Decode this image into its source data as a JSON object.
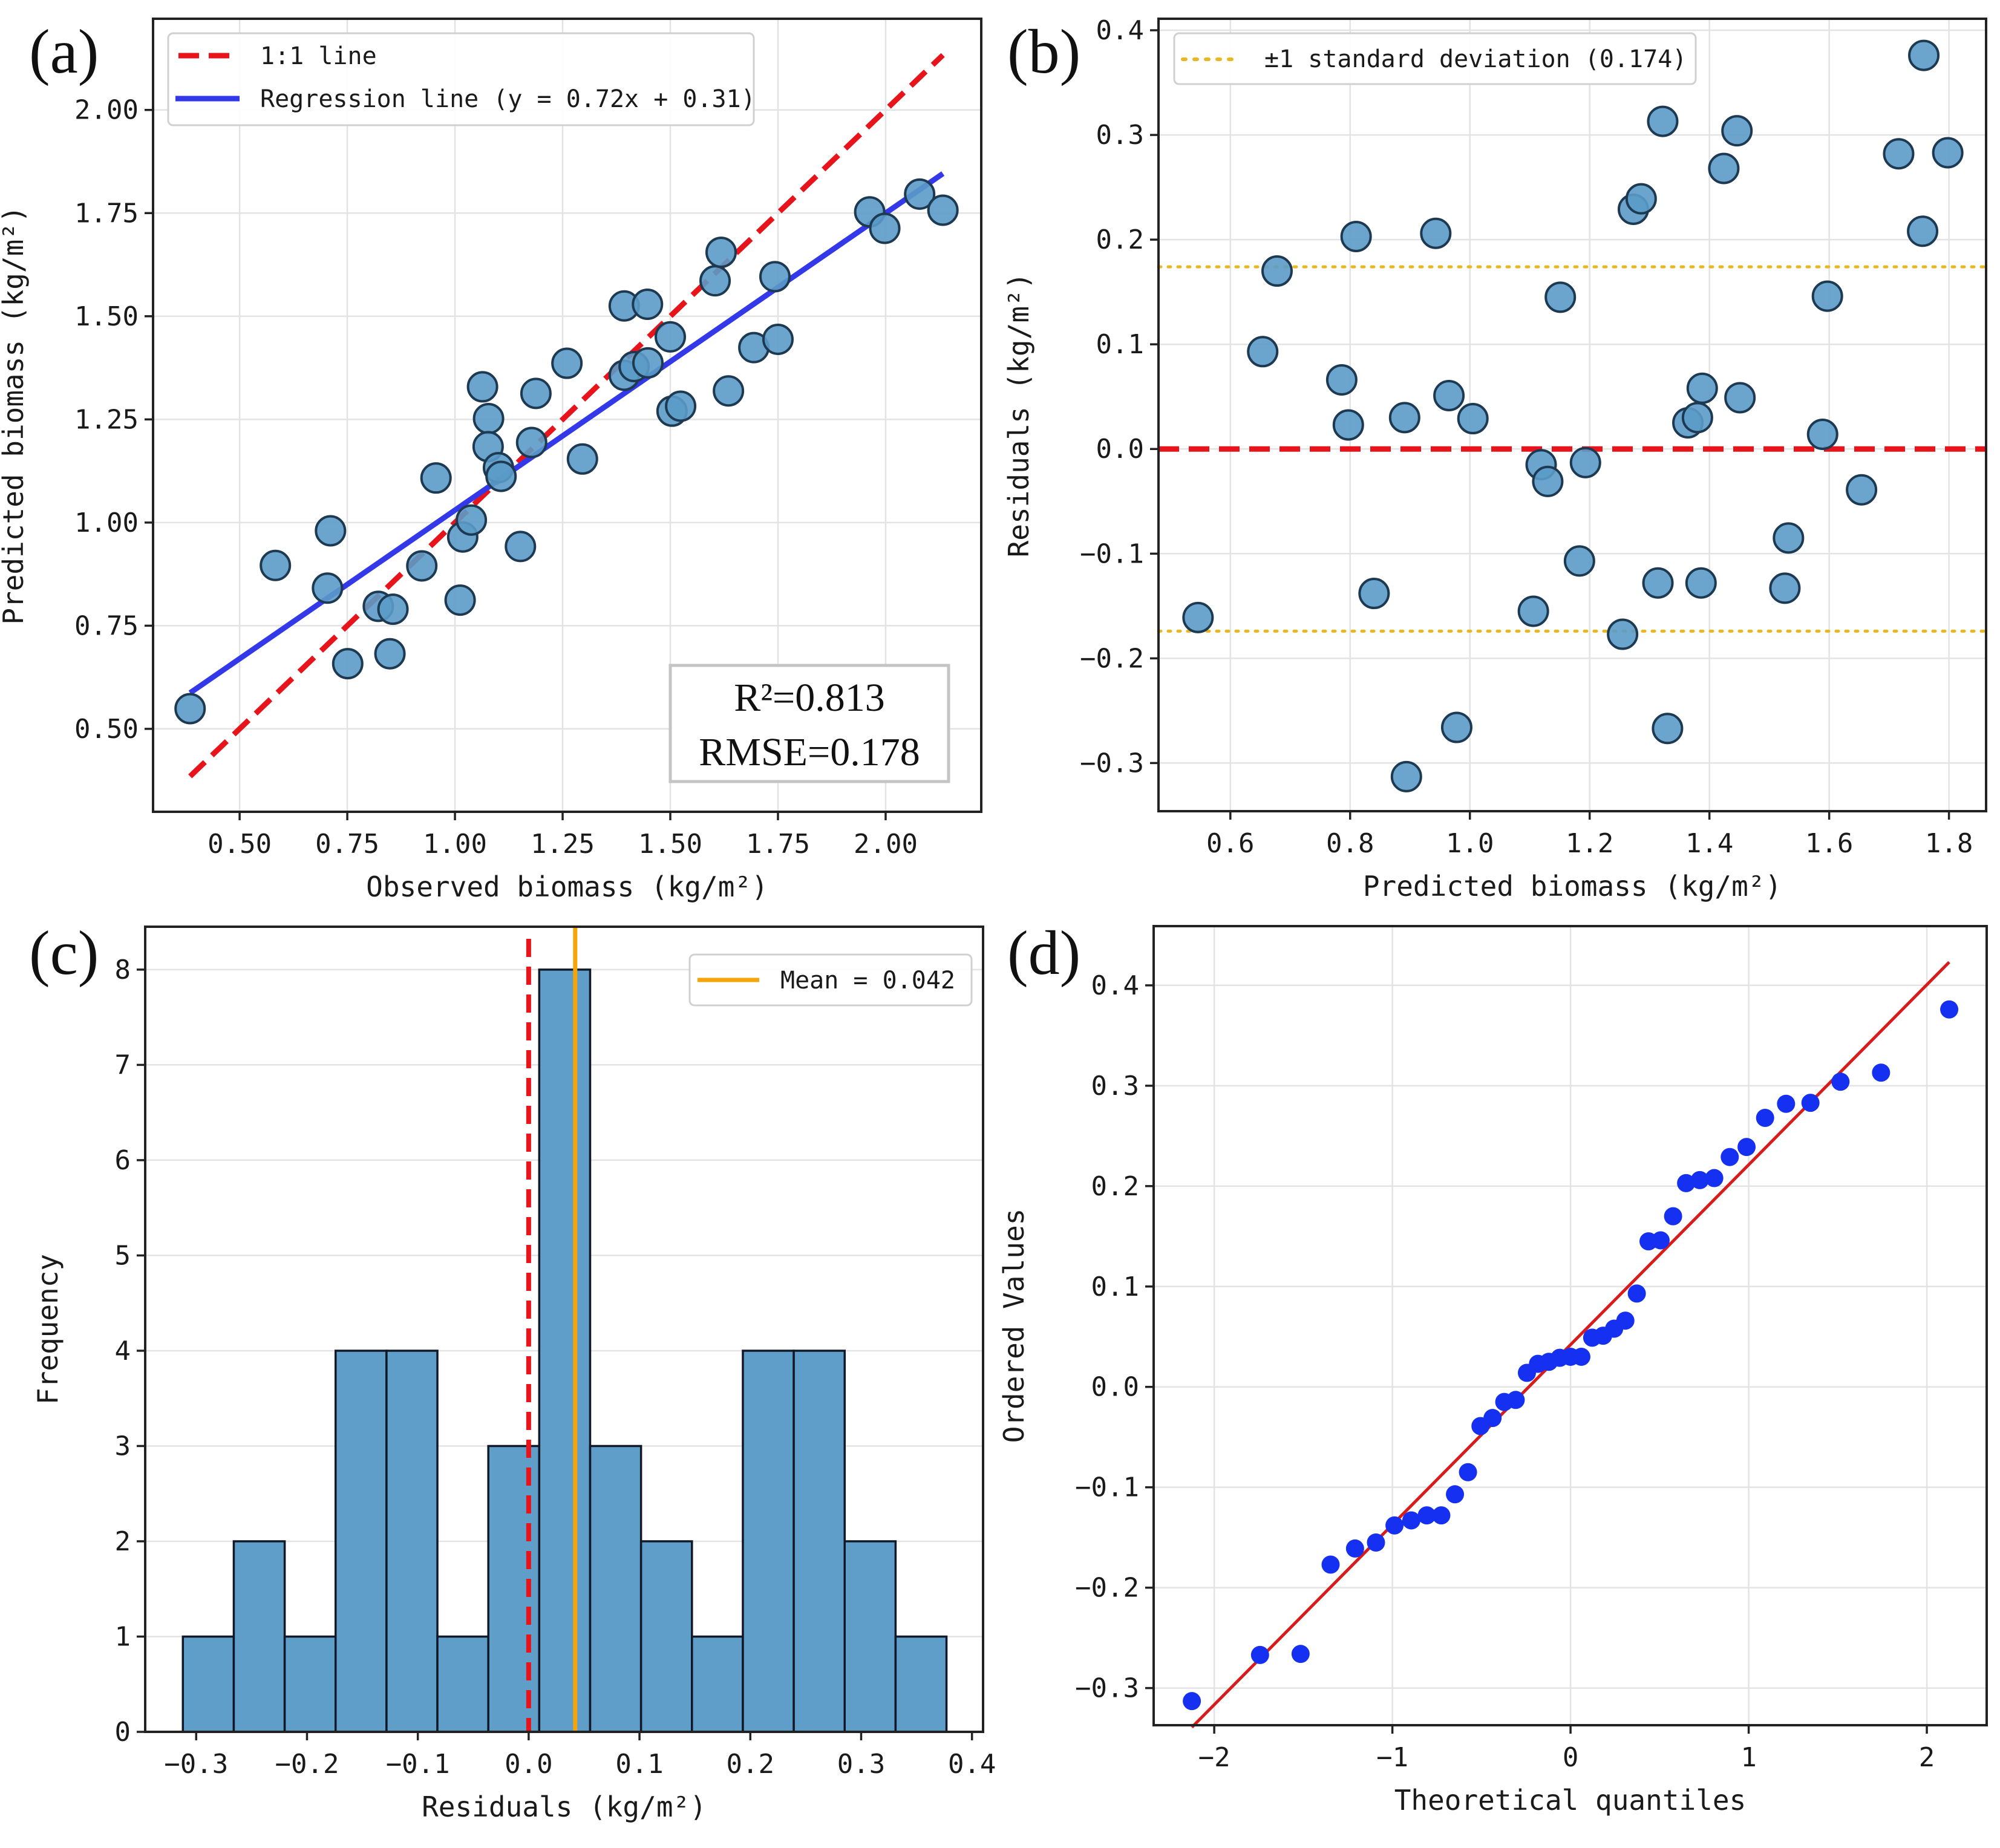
{
  "figure": {
    "panel_labels": [
      "(a)",
      "(b)",
      "(c)",
      "(d)"
    ]
  },
  "chart_data": [
    {
      "id": "a",
      "type": "scatter",
      "title": "",
      "xlabel": "Observed biomass (kg/m²)",
      "ylabel": "Predicted biomass (kg/m²)",
      "xlim": [
        0.299,
        2.222
      ],
      "ylim": [
        0.299,
        2.221
      ],
      "xticks": [
        0.5,
        0.75,
        1.0,
        1.25,
        1.5,
        1.75,
        2.0
      ],
      "xtick_labels": [
        "0.50",
        "0.75",
        "1.00",
        "1.25",
        "1.50",
        "1.75",
        "2.00"
      ],
      "yticks": [
        0.5,
        0.75,
        1.0,
        1.25,
        1.5,
        1.75,
        2.0
      ],
      "ytick_labels": [
        "0.50",
        "0.75",
        "1.00",
        "1.25",
        "1.50",
        "1.75",
        "2.00"
      ],
      "grid": true,
      "legend_position": "top-left",
      "legend": [
        {
          "label": "1:1 line",
          "style": "dashed",
          "color": "#e8141c"
        },
        {
          "label": "Regression line (y = 0.72x + 0.31)",
          "style": "solid",
          "color": "#3338e8"
        }
      ],
      "lines": [
        {
          "name": "1:1 line",
          "slope": 1.0,
          "intercept": 0.0,
          "x_range": [
            0.385,
            2.133
          ],
          "style": "dashed",
          "color": "#e8141c"
        },
        {
          "name": "Regression line",
          "slope": 0.72,
          "intercept": 0.31,
          "x_range": [
            0.385,
            2.133
          ],
          "style": "solid",
          "color": "#3338e8"
        }
      ],
      "annotation": {
        "r2_label": "R²=0.813",
        "rmse_label": "RMSE=0.178",
        "position": "bottom-right"
      },
      "marker_color": "#5b9bc8",
      "points": [
        [
          0.385,
          0.549
        ],
        [
          0.583,
          0.896
        ],
        [
          0.711,
          0.98
        ],
        [
          0.704,
          0.841
        ],
        [
          0.751,
          0.658
        ],
        [
          0.822,
          0.797
        ],
        [
          0.856,
          0.79
        ],
        [
          0.849,
          0.682
        ],
        [
          0.923,
          0.895
        ],
        [
          0.956,
          1.108
        ],
        [
          1.012,
          0.812
        ],
        [
          1.018,
          0.965
        ],
        [
          1.038,
          1.006
        ],
        [
          1.064,
          1.329
        ],
        [
          1.078,
          1.252
        ],
        [
          1.077,
          1.184
        ],
        [
          1.101,
          1.133
        ],
        [
          1.107,
          1.112
        ],
        [
          1.152,
          0.942
        ],
        [
          1.178,
          1.194
        ],
        [
          1.188,
          1.313
        ],
        [
          1.26,
          1.386
        ],
        [
          1.296,
          1.154
        ],
        [
          1.393,
          1.525
        ],
        [
          1.393,
          1.357
        ],
        [
          1.416,
          1.378
        ],
        [
          1.447,
          1.529
        ],
        [
          1.448,
          1.387
        ],
        [
          1.5,
          1.45
        ],
        [
          1.504,
          1.27
        ],
        [
          1.524,
          1.282
        ],
        [
          1.604,
          1.586
        ],
        [
          1.618,
          1.655
        ],
        [
          1.635,
          1.319
        ],
        [
          1.694,
          1.424
        ],
        [
          1.743,
          1.596
        ],
        [
          1.75,
          1.444
        ],
        [
          1.963,
          1.753
        ],
        [
          1.998,
          1.713
        ],
        [
          2.079,
          1.796
        ],
        [
          2.133,
          1.757
        ]
      ]
    },
    {
      "id": "b",
      "type": "scatter",
      "title": "",
      "xlabel": "Predicted biomass (kg/m²)",
      "ylabel": "Residuals (kg/m²)",
      "xlim": [
        0.48,
        1.862
      ],
      "ylim": [
        -0.346,
        0.411
      ],
      "xticks": [
        0.6,
        0.8,
        1.0,
        1.2,
        1.4,
        1.6,
        1.8
      ],
      "xtick_labels": [
        "0.6",
        "0.8",
        "1.0",
        "1.2",
        "1.4",
        "1.6",
        "1.8"
      ],
      "yticks": [
        -0.3,
        -0.2,
        -0.1,
        0.0,
        0.1,
        0.2,
        0.3,
        0.4
      ],
      "ytick_labels": [
        "−0.3",
        "−0.2",
        "−0.1",
        "0.0",
        "0.1",
        "0.2",
        "0.3",
        "0.4"
      ],
      "grid": true,
      "legend_position": "top-left",
      "legend": [
        {
          "label": "±1 standard deviation (0.174)",
          "style": "dotted",
          "color": "#e8b820"
        }
      ],
      "hlines": [
        {
          "y": 0.0,
          "style": "dashed",
          "color": "#e8141c"
        },
        {
          "y": 0.174,
          "style": "dotted",
          "color": "#e8b820"
        },
        {
          "y": -0.174,
          "style": "dotted",
          "color": "#e8b820"
        }
      ],
      "marker_color": "#5b9bc8",
      "points": [
        [
          0.546,
          -0.161
        ],
        [
          0.654,
          0.093
        ],
        [
          0.678,
          0.17
        ],
        [
          0.786,
          0.066
        ],
        [
          0.797,
          0.023
        ],
        [
          0.81,
          0.203
        ],
        [
          0.84,
          -0.138
        ],
        [
          0.891,
          0.03
        ],
        [
          0.894,
          -0.313
        ],
        [
          0.943,
          0.206
        ],
        [
          0.965,
          0.051
        ],
        [
          0.978,
          -0.266
        ],
        [
          1.005,
          0.029
        ],
        [
          1.106,
          -0.155
        ],
        [
          1.119,
          -0.015
        ],
        [
          1.13,
          -0.031
        ],
        [
          1.151,
          0.145
        ],
        [
          1.183,
          -0.107
        ],
        [
          1.193,
          -0.013
        ],
        [
          1.255,
          -0.177
        ],
        [
          1.273,
          0.229
        ],
        [
          1.286,
          0.239
        ],
        [
          1.314,
          -0.128
        ],
        [
          1.322,
          0.313
        ],
        [
          1.33,
          -0.267
        ],
        [
          1.364,
          0.025
        ],
        [
          1.38,
          0.03
        ],
        [
          1.386,
          -0.128
        ],
        [
          1.388,
          0.058
        ],
        [
          1.424,
          0.268
        ],
        [
          1.446,
          0.304
        ],
        [
          1.451,
          0.049
        ],
        [
          1.526,
          -0.133
        ],
        [
          1.532,
          -0.085
        ],
        [
          1.589,
          0.014
        ],
        [
          1.597,
          0.146
        ],
        [
          1.654,
          -0.039
        ],
        [
          1.716,
          0.282
        ],
        [
          1.756,
          0.208
        ],
        [
          1.758,
          0.376
        ],
        [
          1.798,
          0.283
        ]
      ]
    },
    {
      "id": "c",
      "type": "bar",
      "title": "",
      "xlabel": "Residuals (kg/m²)",
      "ylabel": "Frequency",
      "xlim": [
        -0.346,
        0.41
      ],
      "ylim": [
        0,
        8.45
      ],
      "xticks": [
        -0.3,
        -0.2,
        -0.1,
        0.0,
        0.1,
        0.2,
        0.3,
        0.4
      ],
      "xtick_labels": [
        "−0.3",
        "−0.2",
        "−0.1",
        "0.0",
        "0.1",
        "0.2",
        "0.3",
        "0.4"
      ],
      "yticks": [
        0,
        1,
        2,
        3,
        4,
        5,
        6,
        7,
        8
      ],
      "ytick_labels": [
        "0",
        "1",
        "2",
        "3",
        "4",
        "5",
        "6",
        "7",
        "8"
      ],
      "grid": true,
      "legend_position": "top-right",
      "legend": [
        {
          "label": "Mean = 0.042",
          "style": "solid",
          "color": "#f5a50a"
        }
      ],
      "bin_start": -0.312,
      "bin_end": 0.377,
      "counts": [
        1,
        2,
        1,
        4,
        4,
        1,
        3,
        8,
        3,
        2,
        1,
        4,
        4,
        2,
        1
      ],
      "bar_color": "#5f9ec9",
      "vlines": [
        {
          "x": 0.0,
          "style": "dashed",
          "color": "#e8141c"
        },
        {
          "x": 0.042,
          "style": "solid",
          "color": "#f5a50a"
        }
      ]
    },
    {
      "id": "d",
      "type": "scatter",
      "title": "",
      "xlabel": "Theoretical quantiles",
      "ylabel": "Ordered Values",
      "xlim": [
        -2.34,
        2.336
      ],
      "ylim": [
        -0.337,
        0.459
      ],
      "xticks": [
        -2,
        -1,
        0,
        1,
        2
      ],
      "xtick_labels": [
        "−2",
        "−1",
        "0",
        "1",
        "2"
      ],
      "yticks": [
        -0.3,
        -0.2,
        -0.1,
        0.0,
        0.1,
        0.2,
        0.3,
        0.4
      ],
      "ytick_labels": [
        "−0.3",
        "−0.2",
        "−0.1",
        "0.0",
        "0.1",
        "0.2",
        "0.3",
        "0.4"
      ],
      "grid": true,
      "fit_line": {
        "slope": 0.1793,
        "intercept": 0.042,
        "color": "#d81b1b"
      },
      "marker_color": "#1530f0",
      "ordered_values_source": "residuals of panel (b), sorted ascending",
      "ordered_values": [
        -0.313,
        -0.267,
        -0.266,
        -0.177,
        -0.161,
        -0.155,
        -0.138,
        -0.133,
        -0.128,
        -0.128,
        -0.107,
        -0.085,
        -0.039,
        -0.031,
        -0.015,
        -0.013,
        0.014,
        0.023,
        0.025,
        0.029,
        0.03,
        0.03,
        0.049,
        0.051,
        0.058,
        0.066,
        0.093,
        0.145,
        0.146,
        0.17,
        0.203,
        0.206,
        0.208,
        0.229,
        0.239,
        0.268,
        0.282,
        0.283,
        0.304,
        0.313,
        0.376
      ]
    }
  ]
}
